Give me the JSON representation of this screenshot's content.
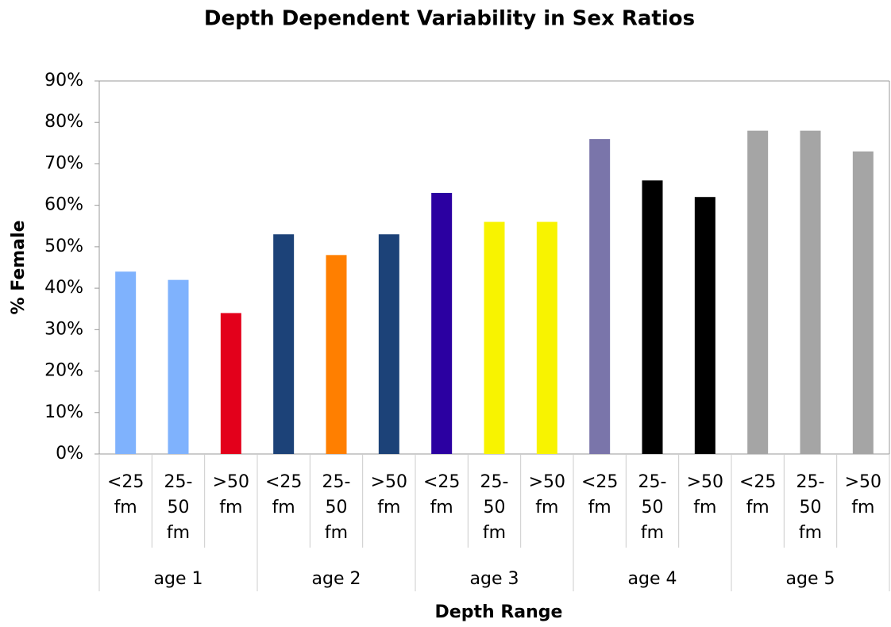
{
  "chart_data": {
    "type": "bar",
    "title": "Depth Dependent Variability in Sex Ratios",
    "x_label": "Depth Range",
    "y_label": "% Female",
    "categories": [
      "<25 fm",
      "25-50 fm",
      ">50 fm",
      "<25 fm",
      "25-50 fm",
      ">50 fm",
      "<25 fm",
      "25-50 fm",
      ">50 fm",
      "<25 fm",
      "25-50 fm",
      ">50 fm",
      "<25 fm",
      "25-50 fm",
      ">50 fm"
    ],
    "groups": [
      "age 1",
      "age 2",
      "age 3",
      "age 4",
      "age 5"
    ],
    "values": [
      44,
      42,
      34,
      53,
      48,
      53,
      63,
      56,
      56,
      76,
      66,
      62,
      78,
      78,
      73
    ],
    "colors": [
      "#7fb2fd",
      "#7fb2fd",
      "#e3001b",
      "#1c4278",
      "#ff7f00",
      "#1c4278",
      "#2b00a1",
      "#f8f300",
      "#f8f300",
      "#7a75aa",
      "#000000",
      "#000000",
      "#a5a5a5",
      "#a5a5a5",
      "#a5a5a5"
    ],
    "ylim": [
      0,
      90
    ],
    "yticks": [
      {
        "value": 0,
        "label": "0%"
      },
      {
        "value": 10,
        "label": "10%"
      },
      {
        "value": 20,
        "label": "20%"
      },
      {
        "value": 30,
        "label": "30%"
      },
      {
        "value": 40,
        "label": "40%"
      },
      {
        "value": 50,
        "label": "50%"
      },
      {
        "value": 60,
        "label": "60%"
      },
      {
        "value": 70,
        "label": "70%"
      },
      {
        "value": 80,
        "label": "80%"
      },
      {
        "value": 90,
        "label": "90%"
      }
    ],
    "grid": false
  }
}
